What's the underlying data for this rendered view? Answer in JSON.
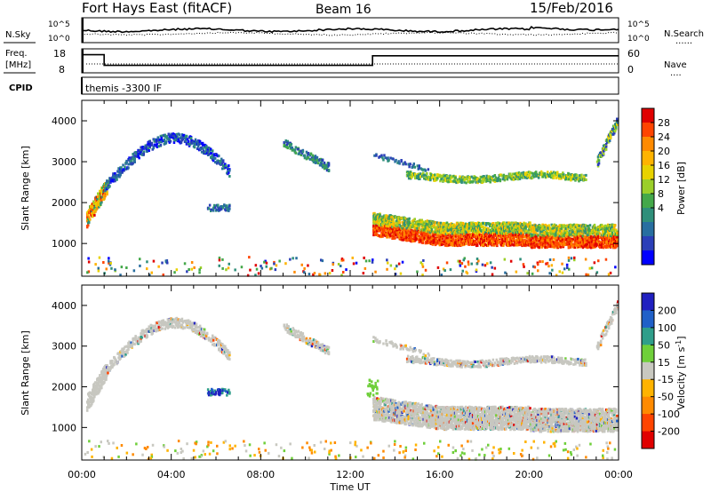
{
  "header": {
    "title": "Fort Hays East (fitACF)",
    "beam": "Beam 16",
    "date": "15/Feb/2016"
  },
  "strip_nsky": {
    "left_label": "N.Sky",
    "right_label": "N.Search",
    "right_key": "......",
    "tick_top": "10^5",
    "tick_bottom": "10^0"
  },
  "strip_freq": {
    "left_label_1": "Freq.",
    "left_label_2": "[MHz]",
    "right_label": "Nave",
    "right_key": "....",
    "left_ticks": [
      "18",
      "8"
    ],
    "right_ticks": [
      "60",
      "0"
    ],
    "series": [
      {
        "t": 0.0,
        "freq": 16.5
      },
      {
        "t": 1.0,
        "freq": 11.5
      },
      {
        "t": 13.0,
        "freq": 16.0
      },
      {
        "t": 24.0,
        "freq": 16.0
      }
    ]
  },
  "strip_cpid": {
    "label": "CPID",
    "text": "themis -3300 IF"
  },
  "chart_data": [
    {
      "type": "heatmap",
      "name": "power",
      "ylabel": "Slant Range [km]",
      "xlabel": "Time UT",
      "x_ticks": [
        "00:00",
        "04:00",
        "08:00",
        "12:00",
        "16:00",
        "20:00",
        "00:00"
      ],
      "x_range_hours": [
        0,
        24
      ],
      "y_ticks": [
        1000,
        2000,
        3000,
        4000
      ],
      "ylim": [
        200,
        4500
      ],
      "colorbar": {
        "label": "Power [dB]",
        "ticks": [
          "28",
          "24",
          "20",
          "16",
          "12",
          "8",
          "4"
        ],
        "colors": [
          "#e00000",
          "#ff4400",
          "#ff8a00",
          "#ffb300",
          "#e8d200",
          "#9bcf2a",
          "#44a84a",
          "#2f8f7a",
          "#286ea0",
          "#2b3fb8",
          "#0000ff"
        ]
      }
    },
    {
      "type": "heatmap",
      "name": "velocity",
      "ylabel": "Slant Range [km]",
      "xlabel": "Time UT",
      "x_ticks": [
        "00:00",
        "04:00",
        "08:00",
        "12:00",
        "16:00",
        "20:00",
        "00:00"
      ],
      "x_range_hours": [
        0,
        24
      ],
      "y_ticks": [
        1000,
        2000,
        3000,
        4000
      ],
      "ylim": [
        200,
        4500
      ],
      "colorbar": {
        "label": "Velocity [m s^-1]",
        "ticks": [
          "200",
          "100",
          "50",
          "15",
          "-15",
          "-50",
          "-100",
          "-200"
        ],
        "colors": [
          "#2020c0",
          "#2060c8",
          "#2f9e8a",
          "#6fcf3a",
          "#c8c8c0",
          "#ffb300",
          "#ff8a00",
          "#ff4400",
          "#e00000"
        ]
      }
    }
  ]
}
